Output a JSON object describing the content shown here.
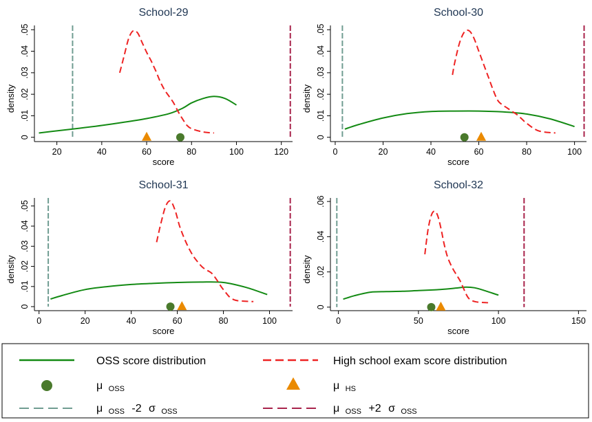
{
  "colors": {
    "oss": "#138a13",
    "hs": "#ee2222",
    "mu_oss": "#4a7a2c",
    "mu_hs": "#ea8a00",
    "minus2": "#6f9c91",
    "plus2": "#a8224a",
    "title": "#1e3552"
  },
  "legend": {
    "oss_label": "OSS score distribution",
    "hs_label": "High school exam score distribution",
    "mu_symbol": "μ",
    "sigma_symbol": "σ",
    "oss_sub": "OSS",
    "hs_sub": "HS",
    "minus_text": "-2",
    "plus_text": "+2"
  },
  "chart_data": [
    {
      "type": "line",
      "title": "School-29",
      "xlabel": "score",
      "ylabel": "density",
      "xlim": [
        10,
        125
      ],
      "ylim": [
        -0.002,
        0.052
      ],
      "xticks": [
        20,
        40,
        60,
        80,
        100,
        120
      ],
      "yticks": [
        0,
        0.01,
        0.02,
        0.03,
        0.04,
        0.05
      ],
      "ytick_labels": [
        "0",
        ".01",
        ".02",
        ".03",
        ".04",
        ".05"
      ],
      "series": [
        {
          "name": "OSS score distribution",
          "x": [
            12,
            20,
            30,
            40,
            50,
            60,
            70,
            76,
            80,
            85,
            90,
            95,
            100
          ],
          "y": [
            0.002,
            0.003,
            0.0042,
            0.0055,
            0.007,
            0.0087,
            0.011,
            0.0135,
            0.016,
            0.018,
            0.019,
            0.018,
            0.015
          ]
        },
        {
          "name": "High school exam score distribution",
          "x": [
            48,
            50,
            52,
            54,
            56,
            58,
            60,
            62,
            64,
            66,
            68,
            70,
            72,
            74,
            76,
            78,
            80,
            85,
            90
          ],
          "y": [
            0.03,
            0.038,
            0.046,
            0.0495,
            0.0485,
            0.044,
            0.0395,
            0.0355,
            0.031,
            0.026,
            0.022,
            0.019,
            0.016,
            0.012,
            0.0085,
            0.0055,
            0.004,
            0.0025,
            0.002
          ]
        }
      ],
      "mu_oss": 75,
      "mu_hs": 60,
      "mu_oss_minus_2sd": 27,
      "mu_oss_plus_2sd": 124
    },
    {
      "type": "line",
      "title": "School-30",
      "xlabel": "score",
      "ylabel": "density",
      "xlim": [
        -2,
        105
      ],
      "ylim": [
        -0.002,
        0.052
      ],
      "xticks": [
        0,
        20,
        40,
        60,
        80,
        100
      ],
      "yticks": [
        0,
        0.01,
        0.02,
        0.03,
        0.04,
        0.05
      ],
      "ytick_labels": [
        "0",
        ".01",
        ".02",
        ".03",
        ".04",
        ".05"
      ],
      "series": [
        {
          "name": "OSS score distribution",
          "x": [
            4,
            10,
            20,
            30,
            40,
            50,
            60,
            70,
            80,
            90,
            100
          ],
          "y": [
            0.0038,
            0.006,
            0.009,
            0.011,
            0.012,
            0.0122,
            0.0122,
            0.0118,
            0.0108,
            0.0085,
            0.005
          ]
        },
        {
          "name": "High school exam score distribution",
          "x": [
            49,
            50,
            52,
            54,
            56,
            58,
            60,
            62,
            64,
            66,
            68,
            70,
            72,
            74,
            76,
            78,
            80,
            85,
            92
          ],
          "y": [
            0.029,
            0.035,
            0.044,
            0.049,
            0.0495,
            0.046,
            0.04,
            0.034,
            0.028,
            0.022,
            0.017,
            0.015,
            0.0135,
            0.012,
            0.0105,
            0.0085,
            0.0065,
            0.003,
            0.002
          ]
        }
      ],
      "mu_oss": 54,
      "mu_hs": 61,
      "mu_oss_minus_2sd": 3,
      "mu_oss_plus_2sd": 104
    },
    {
      "type": "line",
      "title": "School-31",
      "xlabel": "score",
      "ylabel": "density",
      "xlim": [
        -2,
        110
      ],
      "ylim": [
        -0.002,
        0.054
      ],
      "xticks": [
        0,
        20,
        40,
        60,
        80,
        100
      ],
      "yticks": [
        0,
        0.01,
        0.02,
        0.03,
        0.04,
        0.05
      ],
      "ytick_labels": [
        "0",
        ".01",
        ".02",
        ".03",
        ".04",
        ".05"
      ],
      "series": [
        {
          "name": "OSS score distribution",
          "x": [
            5,
            10,
            20,
            30,
            40,
            50,
            60,
            70,
            80,
            90,
            99
          ],
          "y": [
            0.0038,
            0.0055,
            0.0085,
            0.01,
            0.011,
            0.0116,
            0.012,
            0.0122,
            0.012,
            0.0095,
            0.006
          ]
        },
        {
          "name": "High school exam score distribution",
          "x": [
            51,
            53,
            55,
            57,
            59,
            61,
            63,
            65,
            67,
            69,
            71,
            73,
            75,
            77,
            79,
            81,
            83,
            86,
            93
          ],
          "y": [
            0.032,
            0.042,
            0.05,
            0.0525,
            0.048,
            0.04,
            0.034,
            0.029,
            0.025,
            0.022,
            0.0195,
            0.018,
            0.0165,
            0.0135,
            0.01,
            0.007,
            0.0045,
            0.003,
            0.0025
          ]
        }
      ],
      "mu_oss": 57,
      "mu_hs": 62,
      "mu_oss_minus_2sd": 4,
      "mu_oss_plus_2sd": 109
    },
    {
      "type": "line",
      "title": "School-32",
      "xlabel": "score",
      "ylabel": "density",
      "xlim": [
        -5,
        155
      ],
      "ylim": [
        -0.002,
        0.062
      ],
      "xticks": [
        0,
        50,
        100,
        150
      ],
      "yticks": [
        0,
        0.02,
        0.04,
        0.06
      ],
      "ytick_labels": [
        "0",
        ".02",
        ".04",
        ".06"
      ],
      "series": [
        {
          "name": "OSS score distribution",
          "x": [
            3,
            10,
            20,
            30,
            40,
            50,
            60,
            70,
            75,
            80,
            85,
            90,
            100
          ],
          "y": [
            0.0045,
            0.0065,
            0.0085,
            0.0088,
            0.009,
            0.0094,
            0.0098,
            0.0105,
            0.011,
            0.0114,
            0.011,
            0.0098,
            0.0068
          ]
        },
        {
          "name": "High school exam score distribution",
          "x": [
            54,
            56,
            58,
            60,
            62,
            64,
            66,
            68,
            70,
            72,
            74,
            76,
            78,
            80,
            82,
            86,
            94
          ],
          "y": [
            0.03,
            0.044,
            0.052,
            0.0545,
            0.052,
            0.045,
            0.036,
            0.029,
            0.0245,
            0.021,
            0.018,
            0.015,
            0.011,
            0.007,
            0.0045,
            0.003,
            0.0025
          ]
        }
      ],
      "mu_oss": 58,
      "mu_hs": 64,
      "mu_oss_minus_2sd": -1,
      "mu_oss_plus_2sd": 116
    }
  ]
}
